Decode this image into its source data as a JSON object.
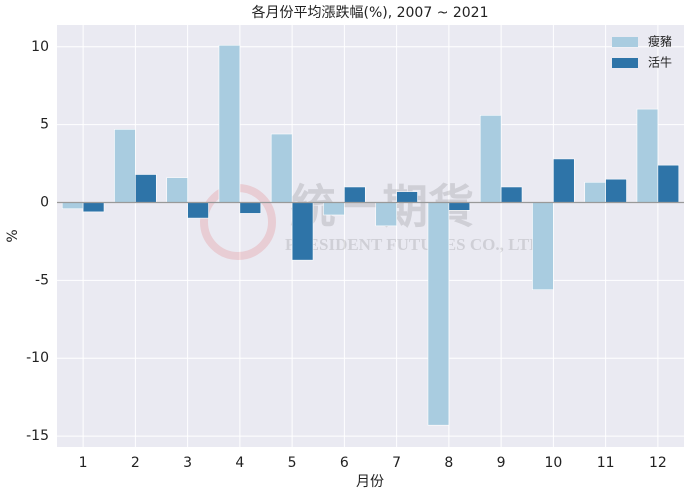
{
  "chart_data": {
    "type": "bar",
    "title": "各月份平均漲跌幅(%), 2007 ~ 2021",
    "x_label": "月份",
    "y_label": "%",
    "categories": [
      "1",
      "2",
      "3",
      "4",
      "5",
      "6",
      "7",
      "8",
      "9",
      "10",
      "11",
      "12"
    ],
    "series": [
      {
        "name": "瘦豬",
        "color": "#a9cce0",
        "values": [
          -0.4,
          4.7,
          1.6,
          10.1,
          4.4,
          -0.8,
          -1.5,
          -14.3,
          5.6,
          -5.6,
          1.3,
          6.0
        ]
      },
      {
        "name": "活牛",
        "color": "#2e74a8",
        "values": [
          -0.6,
          1.8,
          -1.0,
          -0.7,
          -3.7,
          1.0,
          0.7,
          -0.5,
          1.0,
          2.8,
          1.5,
          2.4
        ]
      }
    ],
    "ylim": [
      -15.7,
      11.4
    ],
    "yticks": [
      -15,
      -10,
      -5,
      0,
      5,
      10
    ],
    "grid": true,
    "legend": "upper right",
    "watermark": [
      "統一期貨",
      "PRESIDENT FUTURES CO., LTD."
    ]
  }
}
